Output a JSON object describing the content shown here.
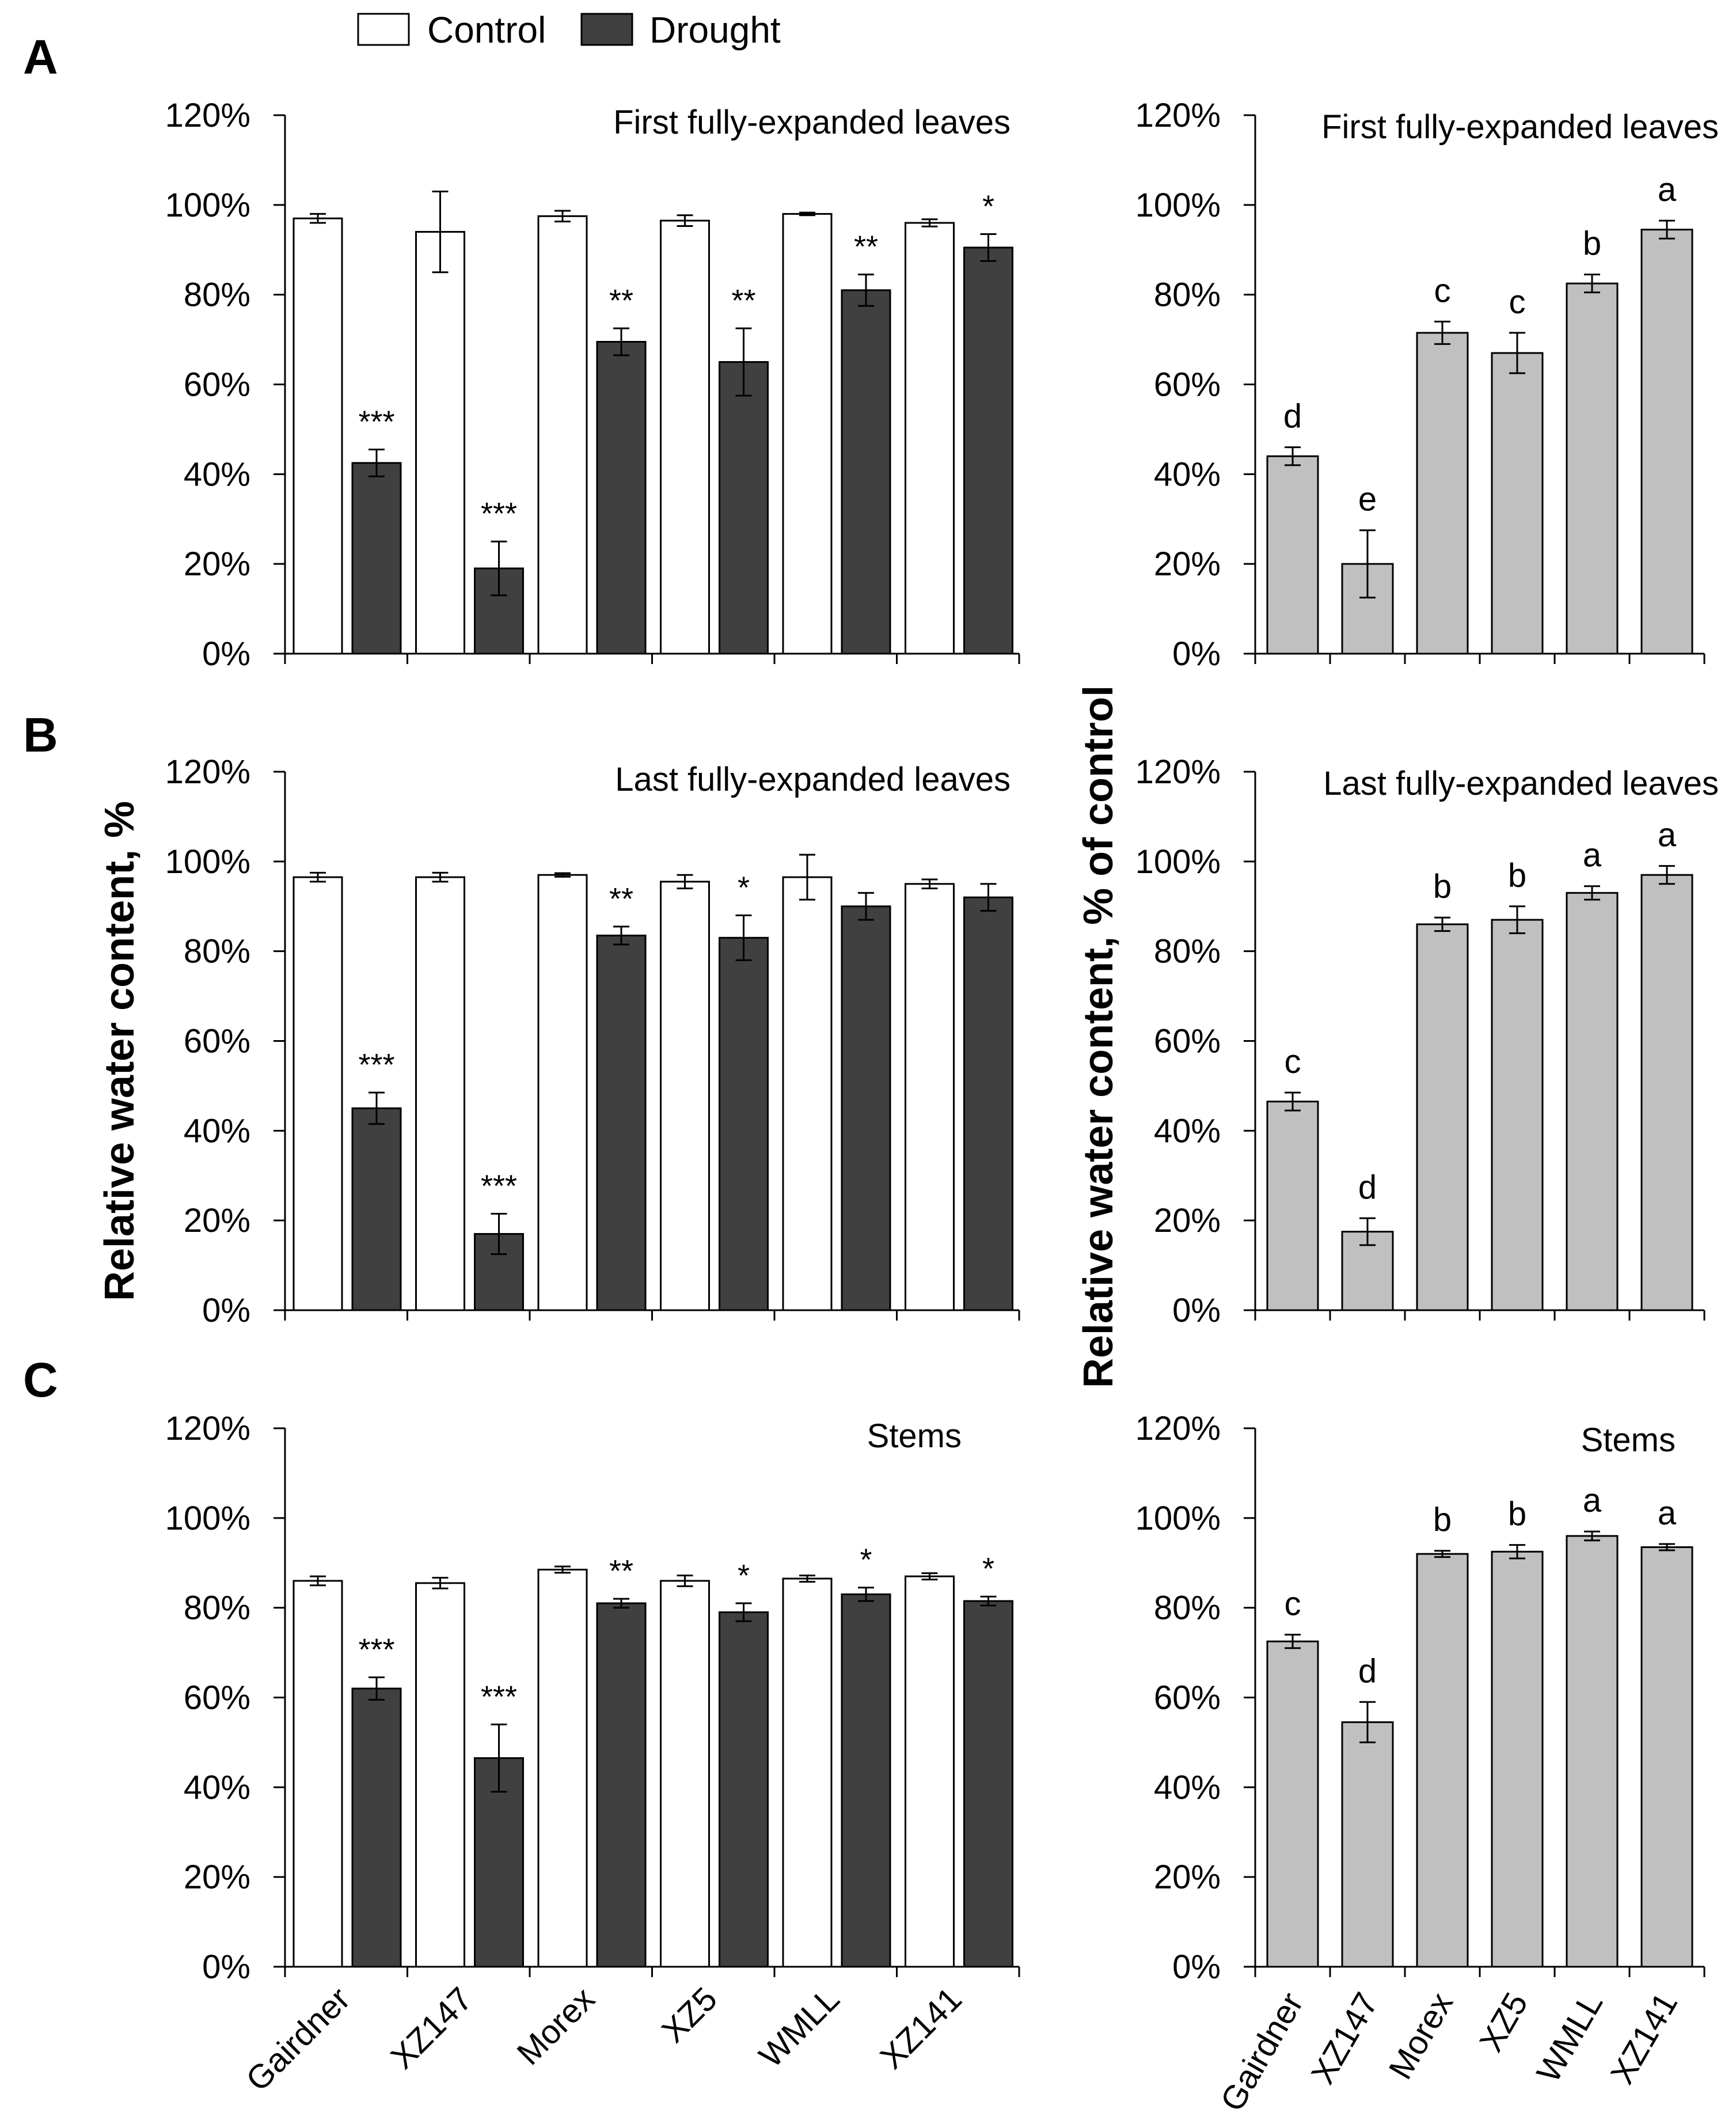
{
  "legend": {
    "control": "Control",
    "drought": "Drought"
  },
  "ylabels": {
    "left": "Relative water content, %",
    "right": "Relative water content, % of control"
  },
  "colors": {
    "control": "#ffffff",
    "drought": "#404040",
    "percent_control": "#c0c0c0",
    "stroke": "#000000"
  },
  "chart_data": [
    {
      "type": "bar",
      "panel": "A",
      "title": "First fully-expanded  leaves",
      "categories": [
        "Gairdner",
        "XZ147",
        "Morex",
        "XZ5",
        "WMLL",
        "XZ141"
      ],
      "ylim": [
        0,
        120
      ],
      "yticks": [
        "0%",
        "20%",
        "40%",
        "60%",
        "80%",
        "100%",
        "120%"
      ],
      "series": [
        {
          "name": "Control",
          "values": [
            97,
            94,
            97.5,
            96.5,
            98,
            96
          ],
          "errors": [
            1,
            9,
            1.2,
            1.2,
            0.3,
            0.8
          ]
        },
        {
          "name": "Drought",
          "values": [
            42.5,
            19,
            69.5,
            65,
            81,
            90.5
          ],
          "errors": [
            3,
            6,
            3,
            7.5,
            3.5,
            3
          ]
        }
      ],
      "significance": [
        "***",
        "***",
        "**",
        "**",
        "**",
        "*"
      ]
    },
    {
      "type": "bar",
      "panel": "A-right",
      "title": "First fully-expanded  leaves",
      "categories": [
        "Gairdner",
        "XZ147",
        "Morex",
        "XZ5",
        "WMLL",
        "XZ141"
      ],
      "ylim": [
        0,
        120
      ],
      "yticks": [
        "0%",
        "20%",
        "40%",
        "60%",
        "80%",
        "100%",
        "120%"
      ],
      "series": [
        {
          "name": "% of control",
          "values": [
            44,
            20,
            71.5,
            67,
            82.5,
            94.5
          ],
          "errors": [
            2,
            7.5,
            2.5,
            4.5,
            2,
            2
          ]
        }
      ],
      "letters": [
        "d",
        "e",
        "c",
        "c",
        "b",
        "a"
      ]
    },
    {
      "type": "bar",
      "panel": "B",
      "title": "Last fully-expanded  leaves",
      "categories": [
        "Gairdner",
        "XZ147",
        "Morex",
        "XZ5",
        "WMLL",
        "XZ141"
      ],
      "ylim": [
        0,
        120
      ],
      "yticks": [
        "0%",
        "20%",
        "40%",
        "60%",
        "80%",
        "100%",
        "120%"
      ],
      "series": [
        {
          "name": "Control",
          "values": [
            96.5,
            96.5,
            97,
            95.5,
            96.5,
            95
          ],
          "errors": [
            1,
            1,
            0.4,
            1.5,
            5,
            1
          ]
        },
        {
          "name": "Drought",
          "values": [
            45,
            17,
            83.5,
            83,
            90,
            92
          ],
          "errors": [
            3.5,
            4.5,
            2,
            5,
            3,
            3
          ]
        }
      ],
      "significance": [
        "***",
        "***",
        "**",
        "*",
        "",
        ""
      ]
    },
    {
      "type": "bar",
      "panel": "B-right",
      "title": "Last fully-expanded  leaves",
      "categories": [
        "Gairdner",
        "XZ147",
        "Morex",
        "XZ5",
        "WMLL",
        "XZ141"
      ],
      "ylim": [
        0,
        120
      ],
      "yticks": [
        "0%",
        "20%",
        "40%",
        "60%",
        "80%",
        "100%",
        "120%"
      ],
      "series": [
        {
          "name": "% of control",
          "values": [
            46.5,
            17.5,
            86,
            87,
            93,
            97
          ],
          "errors": [
            2,
            3,
            1.5,
            3,
            1.5,
            2
          ]
        }
      ],
      "letters": [
        "c",
        "d",
        "b",
        "b",
        "a",
        "a"
      ]
    },
    {
      "type": "bar",
      "panel": "C",
      "title": "Stems",
      "categories": [
        "Gairdner",
        "XZ147",
        "Morex",
        "XZ5",
        "WMLL",
        "XZ141"
      ],
      "ylim": [
        0,
        120
      ],
      "yticks": [
        "0%",
        "20%",
        "40%",
        "60%",
        "80%",
        "100%",
        "120%"
      ],
      "series": [
        {
          "name": "Control",
          "values": [
            86,
            85.5,
            88.5,
            86,
            86.5,
            87
          ],
          "errors": [
            1,
            1.2,
            0.7,
            1.2,
            0.7,
            0.7
          ]
        },
        {
          "name": "Drought",
          "values": [
            62,
            46.5,
            81,
            79,
            83,
            81.5
          ],
          "errors": [
            2.5,
            7.5,
            1,
            2,
            1.5,
            1
          ]
        }
      ],
      "significance": [
        "***",
        "***",
        "**",
        "*",
        "*",
        "*"
      ]
    },
    {
      "type": "bar",
      "panel": "C-right",
      "title": "Stems",
      "categories": [
        "Gairdner",
        "XZ147",
        "Morex",
        "XZ5",
        "WMLL",
        "XZ141"
      ],
      "ylim": [
        0,
        120
      ],
      "yticks": [
        "0%",
        "20%",
        "40%",
        "60%",
        "80%",
        "100%",
        "120%"
      ],
      "series": [
        {
          "name": "% of control",
          "values": [
            72.5,
            54.5,
            92,
            92.5,
            96,
            93.5
          ],
          "errors": [
            1.5,
            4.5,
            0.7,
            1.5,
            1,
            0.7
          ]
        }
      ],
      "letters": [
        "c",
        "d",
        "b",
        "b",
        "a",
        "a"
      ]
    }
  ]
}
